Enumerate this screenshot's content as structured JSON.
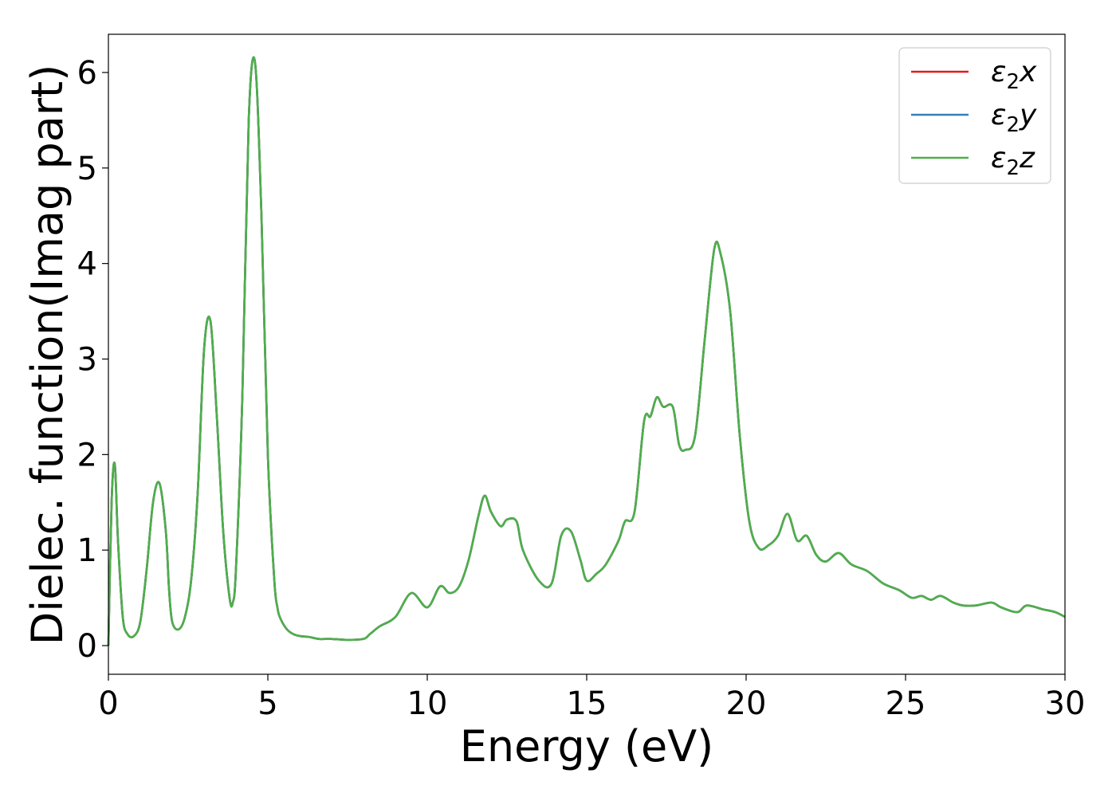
{
  "chart_data": {
    "type": "line",
    "title": "",
    "xlabel": "Energy (eV)",
    "ylabel": "Dielec. function(Imag part)",
    "xlim": [
      0,
      30
    ],
    "ylim": [
      -0.3,
      6.4
    ],
    "xticks": [
      0,
      5,
      10,
      15,
      20,
      25,
      30
    ],
    "yticks": [
      0,
      1,
      2,
      3,
      4,
      5,
      6
    ],
    "grid": false,
    "legend_position": "top-right",
    "legend": [
      {
        "label": "ε₂x",
        "base": "ε",
        "sub": "2",
        "axis": "x",
        "color": "#e41a1c"
      },
      {
        "label": "ε₂y",
        "base": "ε",
        "sub": "2",
        "axis": "y",
        "color": "#377eb8"
      },
      {
        "label": "ε₂z",
        "base": "ε",
        "sub": "2",
        "axis": "z",
        "color": "#4daf4a"
      }
    ],
    "x": [
      0.0,
      0.1,
      0.2,
      0.3,
      0.45,
      0.6,
      0.8,
      1.0,
      1.2,
      1.4,
      1.6,
      1.8,
      1.9,
      2.0,
      2.2,
      2.4,
      2.6,
      2.8,
      3.0,
      3.2,
      3.4,
      3.6,
      3.8,
      3.9,
      4.0,
      4.2,
      4.4,
      4.6,
      4.8,
      5.0,
      5.2,
      5.3,
      5.4,
      5.6,
      5.8,
      6.0,
      6.3,
      6.6,
      7.0,
      7.5,
      8.0,
      8.2,
      8.5,
      9.0,
      9.5,
      10.0,
      10.4,
      10.7,
      11.0,
      11.3,
      11.6,
      11.8,
      12.0,
      12.3,
      12.5,
      12.8,
      13.0,
      13.5,
      13.9,
      14.2,
      14.5,
      14.8,
      15.0,
      15.3,
      15.6,
      16.0,
      16.2,
      16.5,
      16.8,
      17.0,
      17.2,
      17.4,
      17.7,
      17.9,
      18.1,
      18.4,
      18.7,
      19.0,
      19.2,
      19.5,
      19.8,
      20.1,
      20.4,
      20.7,
      21.0,
      21.3,
      21.6,
      21.9,
      22.2,
      22.5,
      22.9,
      23.3,
      23.8,
      24.3,
      24.8,
      25.2,
      25.5,
      25.8,
      26.1,
      26.5,
      26.8,
      27.2,
      27.7,
      28.0,
      28.5,
      28.8,
      29.3,
      29.7,
      30.0
    ],
    "series": [
      {
        "name": "ε₂x",
        "color": "#e41a1c",
        "values": [
          0.0,
          1.5,
          1.9,
          1.1,
          0.3,
          0.12,
          0.1,
          0.25,
          0.8,
          1.5,
          1.7,
          1.2,
          0.6,
          0.25,
          0.17,
          0.3,
          0.7,
          1.6,
          3.1,
          3.4,
          2.4,
          1.2,
          0.5,
          0.45,
          0.8,
          2.6,
          5.5,
          6.1,
          4.5,
          2.0,
          0.7,
          0.4,
          0.28,
          0.17,
          0.12,
          0.1,
          0.09,
          0.07,
          0.07,
          0.06,
          0.07,
          0.12,
          0.2,
          0.3,
          0.55,
          0.4,
          0.62,
          0.55,
          0.62,
          0.9,
          1.35,
          1.57,
          1.4,
          1.25,
          1.32,
          1.3,
          1.0,
          0.68,
          0.65,
          1.15,
          1.2,
          0.9,
          0.68,
          0.75,
          0.85,
          1.1,
          1.3,
          1.4,
          2.35,
          2.4,
          2.6,
          2.5,
          2.5,
          2.1,
          2.05,
          2.2,
          3.2,
          4.15,
          4.1,
          3.5,
          2.2,
          1.3,
          1.02,
          1.05,
          1.15,
          1.38,
          1.1,
          1.15,
          0.95,
          0.88,
          0.97,
          0.85,
          0.78,
          0.65,
          0.58,
          0.5,
          0.52,
          0.48,
          0.52,
          0.45,
          0.42,
          0.42,
          0.45,
          0.4,
          0.35,
          0.42,
          0.38,
          0.35,
          0.3
        ]
      },
      {
        "name": "ε₂y",
        "color": "#377eb8",
        "values": [
          0.0,
          1.5,
          1.9,
          1.1,
          0.3,
          0.12,
          0.1,
          0.25,
          0.8,
          1.5,
          1.7,
          1.2,
          0.6,
          0.25,
          0.17,
          0.3,
          0.7,
          1.6,
          3.1,
          3.4,
          2.4,
          1.2,
          0.5,
          0.45,
          0.8,
          2.6,
          5.5,
          6.1,
          4.5,
          2.0,
          0.7,
          0.4,
          0.28,
          0.17,
          0.12,
          0.1,
          0.09,
          0.07,
          0.07,
          0.06,
          0.07,
          0.12,
          0.2,
          0.3,
          0.55,
          0.4,
          0.62,
          0.55,
          0.62,
          0.9,
          1.35,
          1.57,
          1.4,
          1.25,
          1.32,
          1.3,
          1.0,
          0.68,
          0.65,
          1.15,
          1.2,
          0.9,
          0.68,
          0.75,
          0.85,
          1.1,
          1.3,
          1.4,
          2.35,
          2.4,
          2.6,
          2.5,
          2.5,
          2.1,
          2.05,
          2.2,
          3.2,
          4.15,
          4.1,
          3.5,
          2.2,
          1.3,
          1.02,
          1.05,
          1.15,
          1.38,
          1.1,
          1.15,
          0.95,
          0.88,
          0.97,
          0.85,
          0.78,
          0.65,
          0.58,
          0.5,
          0.52,
          0.48,
          0.52,
          0.45,
          0.42,
          0.42,
          0.45,
          0.4,
          0.35,
          0.42,
          0.38,
          0.35,
          0.3
        ]
      },
      {
        "name": "ε₂z",
        "color": "#4daf4a",
        "values": [
          0.0,
          1.5,
          1.9,
          1.1,
          0.3,
          0.12,
          0.1,
          0.25,
          0.8,
          1.5,
          1.7,
          1.2,
          0.6,
          0.25,
          0.17,
          0.3,
          0.7,
          1.6,
          3.1,
          3.4,
          2.4,
          1.2,
          0.5,
          0.45,
          0.8,
          2.6,
          5.5,
          6.1,
          4.5,
          2.0,
          0.7,
          0.4,
          0.28,
          0.17,
          0.12,
          0.1,
          0.09,
          0.07,
          0.07,
          0.06,
          0.07,
          0.12,
          0.2,
          0.3,
          0.55,
          0.4,
          0.62,
          0.55,
          0.62,
          0.9,
          1.35,
          1.57,
          1.4,
          1.25,
          1.32,
          1.3,
          1.0,
          0.68,
          0.65,
          1.15,
          1.2,
          0.9,
          0.68,
          0.75,
          0.85,
          1.1,
          1.3,
          1.4,
          2.35,
          2.4,
          2.6,
          2.5,
          2.5,
          2.1,
          2.05,
          2.2,
          3.2,
          4.15,
          4.1,
          3.5,
          2.2,
          1.3,
          1.02,
          1.05,
          1.15,
          1.38,
          1.1,
          1.15,
          0.95,
          0.88,
          0.97,
          0.85,
          0.78,
          0.65,
          0.58,
          0.5,
          0.52,
          0.48,
          0.52,
          0.45,
          0.42,
          0.42,
          0.45,
          0.4,
          0.35,
          0.42,
          0.38,
          0.35,
          0.3
        ]
      }
    ]
  }
}
